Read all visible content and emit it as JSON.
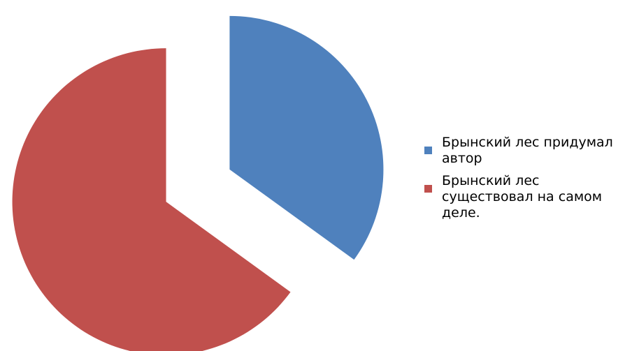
{
  "chart_data": {
    "type": "pie",
    "title": "",
    "slices": [
      {
        "label": "Брынский лес придумал автор",
        "value": 35,
        "color": "#4F81BD"
      },
      {
        "label": "Брынский лес существовал на самом деле.",
        "value": 65,
        "color": "#C0504D"
      }
    ],
    "exploded": true,
    "legend_position": "right"
  }
}
